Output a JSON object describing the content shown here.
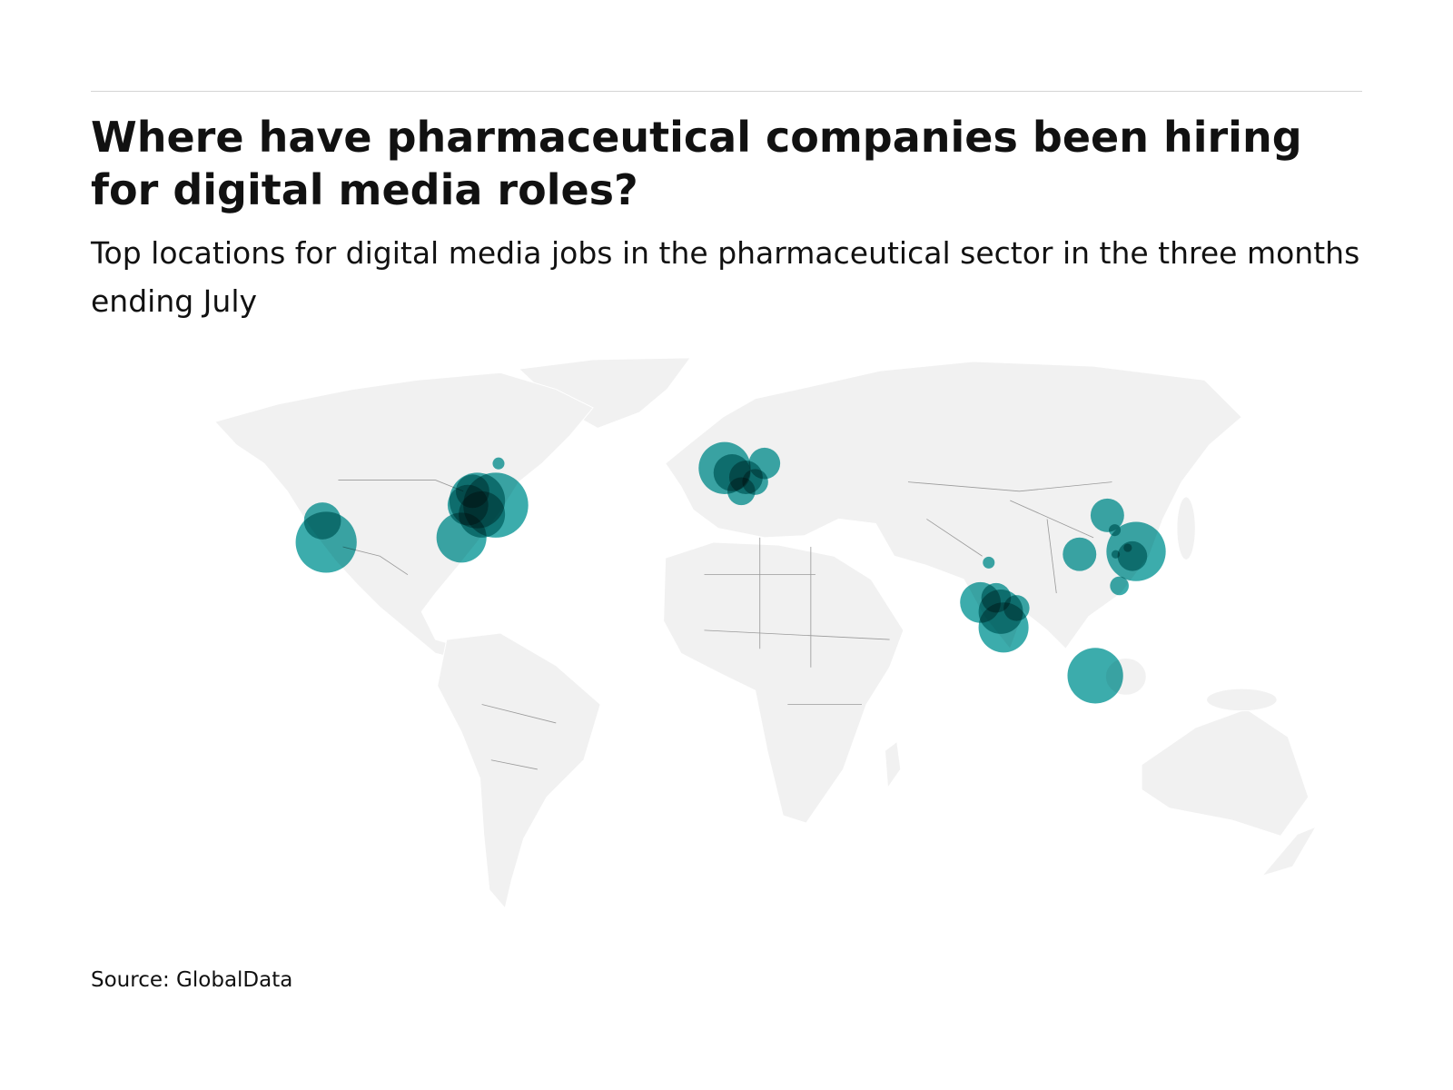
{
  "header": {
    "title": "Where have pharmaceutical companies been hiring for digital media roles?",
    "subtitle": "Top locations for digital media jobs in the pharmaceutical sector in the three months ending July"
  },
  "map": {
    "points": [
      {
        "value": 39
      },
      {
        "value": 106
      },
      {
        "value": 71
      },
      {
        "value": 120
      },
      {
        "value": 88
      },
      {
        "value": 47
      },
      {
        "value": 61
      },
      {
        "value": 32
      },
      {
        "value": 4
      },
      {
        "value": 77
      },
      {
        "value": 28
      },
      {
        "value": 22
      },
      {
        "value": 39
      },
      {
        "value": 32
      },
      {
        "value": 19
      },
      {
        "value": 32
      },
      {
        "value": 32
      },
      {
        "value": 100
      },
      {
        "value": 25
      },
      {
        "value": 10
      },
      {
        "value": 4
      },
      {
        "value": 2
      },
      {
        "value": 2
      },
      {
        "value": 4
      },
      {
        "value": 47
      },
      {
        "value": 56
      },
      {
        "value": 71
      },
      {
        "value": 19
      },
      {
        "value": 25
      },
      {
        "value": 88
      }
    ]
  },
  "footer": {
    "source": "Source: GlobalData"
  }
}
